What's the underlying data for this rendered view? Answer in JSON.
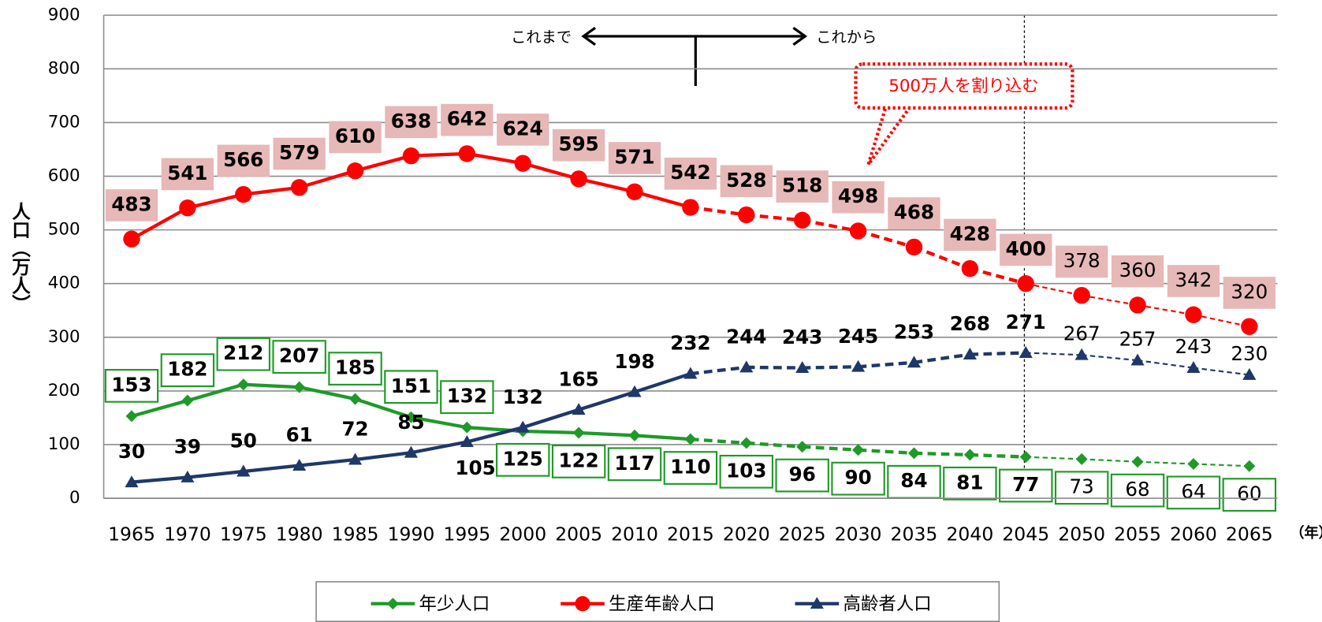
{
  "chart_data": {
    "type": "line",
    "y_label": "人口（万人）",
    "x_label": "（年）",
    "annotations": {
      "past": "これまで",
      "future": "これから",
      "callout": "500万人を割り込む"
    },
    "categories": [
      "1965",
      "1970",
      "1975",
      "1980",
      "1985",
      "1990",
      "1995",
      "2000",
      "2005",
      "2010",
      "2015",
      "2020",
      "2025",
      "2030",
      "2035",
      "2040",
      "2045",
      "2050",
      "2055",
      "2060",
      "2065"
    ],
    "series": [
      {
        "name": "年少人口",
        "color": "#1e9a28",
        "marker": "diamond",
        "values": [
          153,
          182,
          212,
          207,
          185,
          151,
          132,
          125,
          122,
          117,
          110,
          103,
          96,
          90,
          84,
          81,
          77,
          73,
          68,
          64,
          60
        ]
      },
      {
        "name": "生産年齢人口",
        "color": "#ff0000",
        "marker": "circle",
        "values": [
          483,
          541,
          566,
          579,
          610,
          638,
          642,
          624,
          595,
          571,
          542,
          528,
          518,
          498,
          468,
          428,
          400,
          378,
          360,
          342,
          320
        ]
      },
      {
        "name": "高齢者人口",
        "color": "#1f3868",
        "marker": "triangle",
        "values": [
          30,
          39,
          50,
          61,
          72,
          85,
          105,
          132,
          165,
          198,
          232,
          244,
          243,
          245,
          253,
          268,
          271,
          267,
          257,
          243,
          230
        ]
      }
    ],
    "ylim": [
      0,
      900
    ],
    "yticks": [
      0,
      100,
      200,
      300,
      400,
      500,
      600,
      700,
      800,
      900
    ],
    "grid": true
  }
}
